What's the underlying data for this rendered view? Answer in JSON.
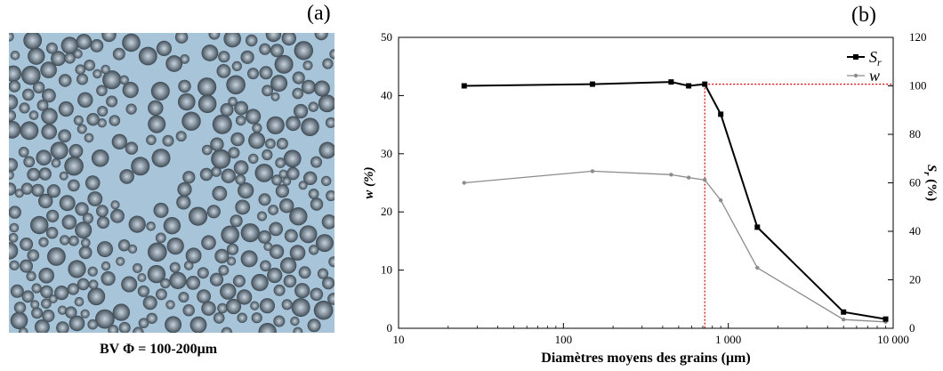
{
  "panel_a": {
    "letter": "(a)",
    "caption": "BV Φ = 100-200μm"
  },
  "panel_b": {
    "letter": "(b)"
  },
  "chart_data": {
    "type": "line",
    "xlabel": "Diamètres moyens des grains (μm)",
    "ylabel_left": "w (%)",
    "ylabel_right": "S",
    "ylabel_right_sub": "r",
    "ylabel_right_suffix": " (%)",
    "x_scale": "log",
    "xlim": [
      10,
      10000
    ],
    "x_ticks": [
      10,
      100,
      1000,
      10000
    ],
    "x_tick_labels": [
      "10",
      "100",
      "1 000",
      "10 000"
    ],
    "ylim_left": [
      0,
      50
    ],
    "y_ticks_left": [
      0,
      10,
      20,
      30,
      40,
      50
    ],
    "ylim_right": [
      0,
      120
    ],
    "y_ticks_right": [
      0,
      20,
      40,
      60,
      80,
      100,
      120
    ],
    "grid": false,
    "legend_position": "top-right",
    "series": [
      {
        "name": "S",
        "name_sub": "r",
        "axis": "right",
        "color": "#000000",
        "marker": "square",
        "x": [
          25,
          150,
          450,
          575,
          720,
          900,
          1500,
          5000,
          9000
        ],
        "y": [
          100,
          100.7,
          101.6,
          100,
          100.7,
          88.3,
          41.7,
          6.7,
          3.8
        ]
      },
      {
        "name": "w",
        "axis": "left",
        "color": "#8c8c8c",
        "marker": "circle",
        "x": [
          25,
          150,
          450,
          575,
          720,
          900,
          1500,
          5000,
          9000
        ],
        "y": [
          25,
          27,
          26.4,
          25.9,
          25.5,
          22,
          10.4,
          1.5,
          1.1
        ]
      }
    ],
    "reference_lines": {
      "color": "#d00000",
      "x_value": 720,
      "y_value_right": 100.7
    }
  }
}
